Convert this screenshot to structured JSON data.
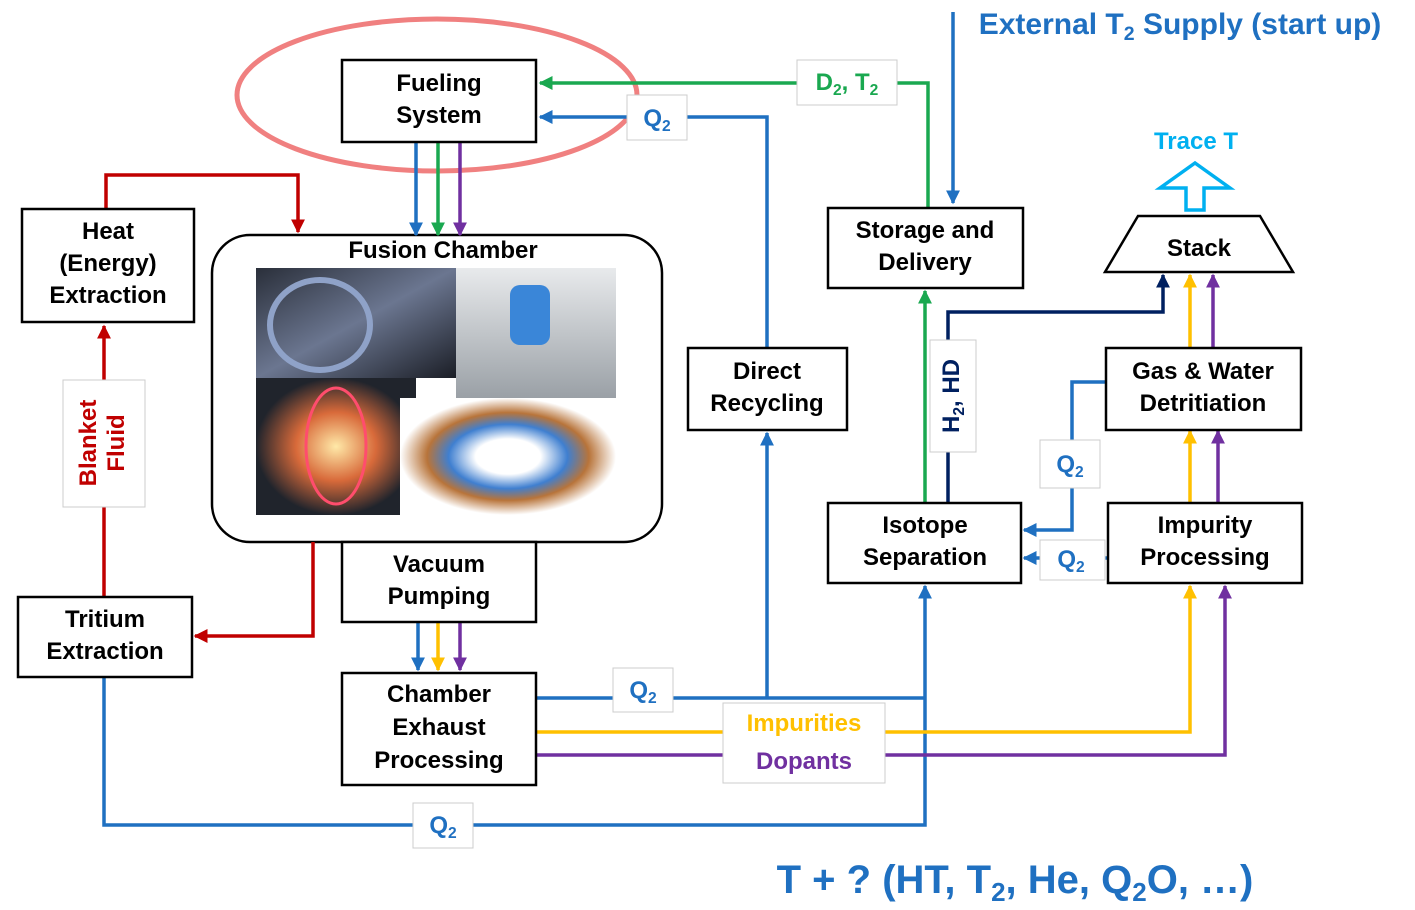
{
  "header": {
    "external_supply": [
      [
        "External T",
        "2",
        " Supply (start up)"
      ]
    ],
    "trace": [
      [
        "Trace T"
      ]
    ],
    "footer": [
      [
        "T + ? (HT, T",
        "2",
        ", He, Q",
        "2",
        "O, …)"
      ]
    ]
  },
  "nodes": [
    {
      "label": [
        "Fueling",
        "System"
      ]
    },
    {
      "label": [
        "Heat",
        "(Energy)",
        "Extraction"
      ]
    },
    {
      "label": [
        "Fusion Chamber"
      ]
    },
    {
      "label": [
        "Vacuum",
        "Pumping"
      ]
    },
    {
      "label": [
        "Tritium",
        "Extraction"
      ]
    },
    {
      "label": [
        "Chamber",
        "Exhaust",
        "Processing"
      ]
    },
    {
      "label": [
        "Direct",
        "Recycling"
      ]
    },
    {
      "label": [
        "Storage and",
        "Delivery"
      ]
    },
    {
      "label": [
        "Isotope",
        "Separation"
      ]
    },
    {
      "label": [
        "Gas & Water",
        "Detritiation"
      ]
    },
    {
      "label": [
        "Impurity",
        "Processing"
      ]
    },
    {
      "label": [
        "Stack"
      ]
    }
  ],
  "flow_labels": [
    {
      "lines": [
        [
          "D",
          "2",
          ", T",
          "2"
        ]
      ]
    },
    {
      "lines": [
        [
          "Q",
          "2"
        ]
      ]
    },
    {
      "lines": [
        [
          "Blanket"
        ],
        [
          "Fluid"
        ]
      ]
    },
    {
      "lines": [
        [
          "H",
          "2",
          ", HD"
        ]
      ]
    },
    {
      "lines": [
        [
          "Q",
          "2"
        ]
      ]
    },
    {
      "lines": [
        [
          "Q",
          "2"
        ]
      ]
    },
    {
      "lines": [
        [
          "Q",
          "2"
        ]
      ]
    },
    {
      "lines": [
        [
          "Impurities"
        ]
      ]
    },
    {
      "lines": [
        [
          "Dopants"
        ]
      ]
    },
    {
      "lines": [
        [
          "Q",
          "2"
        ]
      ]
    }
  ]
}
